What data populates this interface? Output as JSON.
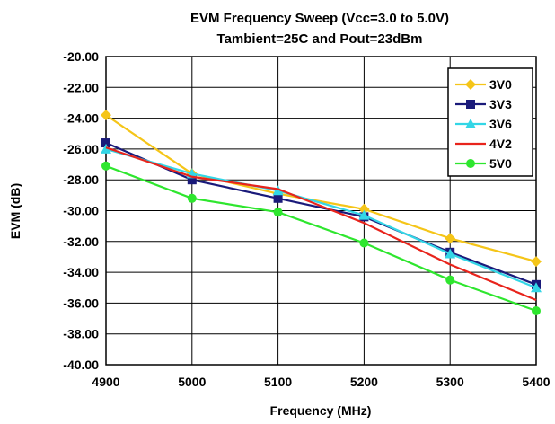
{
  "chart_data": {
    "type": "line",
    "title": "EVM Frequency Sweep (Vcc=3.0 to 5.0V)",
    "subtitle": "Tambient=25C and Pout=23dBm",
    "xlabel": "Frequency (MHz)",
    "ylabel": "EVM (dB)",
    "x": [
      4900,
      5000,
      5100,
      5200,
      5300,
      5400
    ],
    "xlim": [
      4900,
      5400
    ],
    "ylim": [
      -40,
      -20
    ],
    "x_ticks": [
      "4900",
      "5000",
      "5100",
      "5200",
      "5300",
      "5400"
    ],
    "y_ticks": [
      "-20.00",
      "-22.00",
      "-24.00",
      "-26.00",
      "-28.00",
      "-30.00",
      "-32.00",
      "-34.00",
      "-36.00",
      "-38.00",
      "-40.00"
    ],
    "grid": true,
    "legend_position": "top-right",
    "series": [
      {
        "name": "3V0",
        "color": "#F5C518",
        "marker": "diamond",
        "values": [
          -23.8,
          -27.6,
          -28.9,
          -29.9,
          -31.8,
          -33.3
        ]
      },
      {
        "name": "3V3",
        "color": "#1A1A7A",
        "marker": "square",
        "values": [
          -25.6,
          -28.0,
          -29.2,
          -30.4,
          -32.7,
          -34.8
        ]
      },
      {
        "name": "3V6",
        "color": "#33D6E6",
        "marker": "triangle",
        "values": [
          -26.0,
          -27.6,
          -28.7,
          -30.3,
          -32.8,
          -35.0
        ]
      },
      {
        "name": "4V2",
        "color": "#E8241C",
        "marker": "none",
        "values": [
          -25.9,
          -27.8,
          -28.6,
          -30.8,
          -33.5,
          -35.8
        ]
      },
      {
        "name": "5V0",
        "color": "#2EE62E",
        "marker": "circle",
        "values": [
          -27.1,
          -29.2,
          -30.1,
          -32.1,
          -34.5,
          -36.5
        ]
      }
    ]
  }
}
